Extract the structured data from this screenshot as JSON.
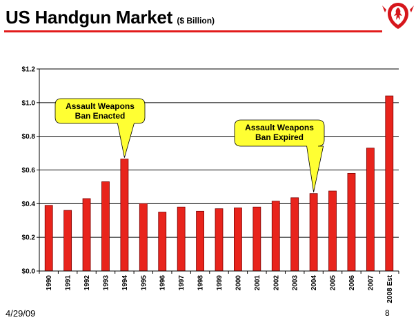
{
  "header": {
    "title": "US Handgun Market",
    "subtitle": "($ Billion)"
  },
  "footer": {
    "date": "4/29/09",
    "page": "8"
  },
  "colors": {
    "bar": "#e8241c",
    "bar_outline": "#7a0000",
    "callout_fill": "#ffff33",
    "accent": "#e21b1b"
  },
  "chart_data": {
    "type": "bar",
    "categories": [
      "1990",
      "1991",
      "1992",
      "1993",
      "1994",
      "1995",
      "1996",
      "1997",
      "1998",
      "1999",
      "2000",
      "2001",
      "2002",
      "2003",
      "2004",
      "2005",
      "2006",
      "2007",
      "2008 Est"
    ],
    "values": [
      0.39,
      0.36,
      0.43,
      0.53,
      0.665,
      0.4,
      0.35,
      0.38,
      0.355,
      0.37,
      0.375,
      0.38,
      0.415,
      0.435,
      0.46,
      0.475,
      0.58,
      0.73,
      1.04
    ],
    "y_ticks": [
      0.0,
      0.2,
      0.4,
      0.6,
      0.8,
      1.0,
      1.2
    ],
    "y_tick_labels": [
      "$0.0",
      "$0.2",
      "$0.4",
      "$0.6",
      "$0.8",
      "$1.0",
      "$1.2"
    ],
    "ylim": [
      0,
      1.2
    ],
    "grid": true,
    "legend": "none",
    "annotations": [
      {
        "text_lines": [
          "Assault Weapons",
          "Ban Enacted"
        ],
        "target_category": "1994"
      },
      {
        "text_lines": [
          "Assault Weapons",
          "Ban Expired"
        ],
        "target_category": "2004"
      }
    ]
  }
}
